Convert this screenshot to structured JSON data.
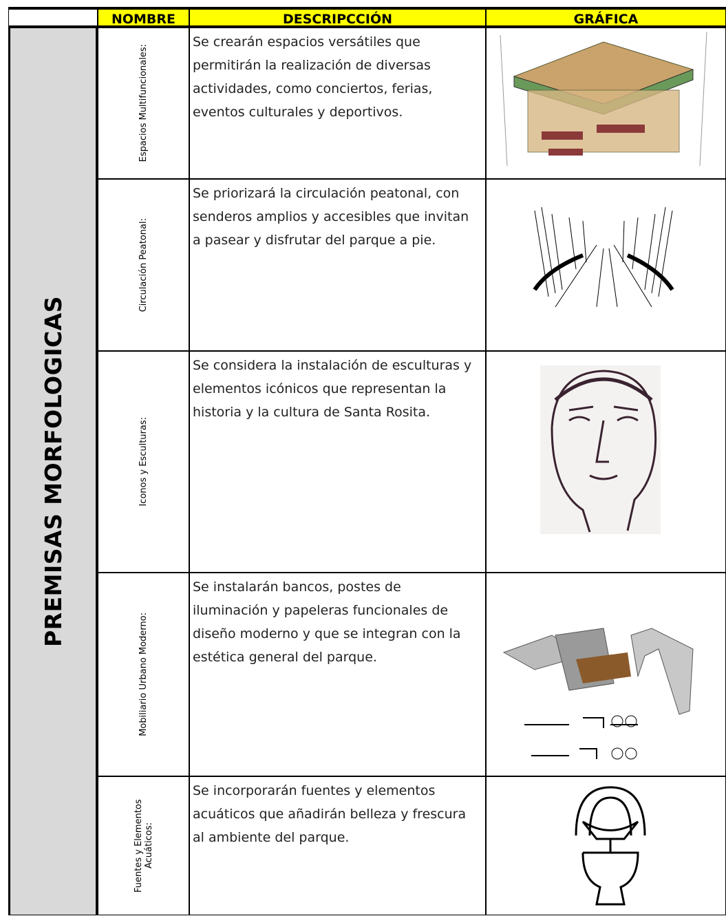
{
  "header": {
    "columns": [
      "NOMBRE",
      "DESCRIPCCIÓN",
      "GRÁFICA"
    ]
  },
  "side_label": "PREMISAS MORFOLOGICAS",
  "rows": [
    {
      "name": "Espacios Multifuncionales:",
      "description": "Se crearán espacios versátiles que permitirán la realización de diversas actividades, como conciertos, ferias, eventos culturales y deportivos."
    },
    {
      "name": "Circulación Peatonal:",
      "description": "Se priorizará la circulación peatonal, con senderos amplios y accesibles que invitan a pasear y disfrutar del parque a pie."
    },
    {
      "name": "Iconos y Esculturas:",
      "description": "Se considera la instalación de esculturas y elementos icónicos que representan la historia y la cultura de Santa Rosita."
    },
    {
      "name": "Mobiliario Urbano Moderno:",
      "description": "Se instalarán bancos, postes de iluminación y papeleras funcionales de diseño moderno y que se integran con la estética general del parque."
    },
    {
      "name": "Fuentes y Elementos Acuáticos:",
      "description": "Se incorporarán fuentes y elementos acuáticos que añadirán belleza y frescura al ambiente del parque."
    }
  ]
}
